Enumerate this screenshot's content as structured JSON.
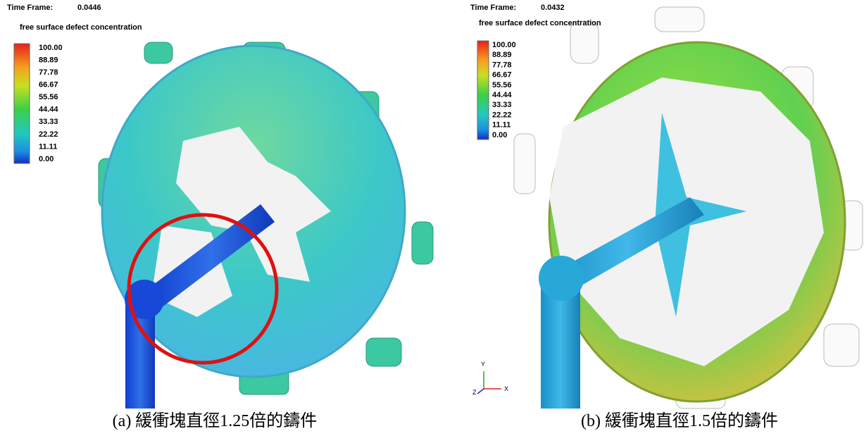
{
  "panels": [
    {
      "time_frame_label": "Time Frame:",
      "time_frame": "0.0446",
      "legend_title": "free surface defect concentration",
      "legend_ticks": [
        "100.00",
        "88.89",
        "77.78",
        "66.67",
        "55.56",
        "44.44",
        "33.33",
        "22.22",
        "11.11",
        "0.00"
      ],
      "caption": "(a)  緩衝塊直徑1.25倍的鑄件"
    },
    {
      "time_frame_label": "Time Frame:",
      "time_frame": "0.0432",
      "legend_title": "free surface defect concentration",
      "legend_ticks": [
        "100.00",
        "88.89",
        "77.78",
        "66.67",
        "55.56",
        "44.44",
        "33.33",
        "22.22",
        "11.11",
        "0.00"
      ],
      "axes": [
        "Y",
        "Z",
        "X"
      ],
      "caption": "(b)  緩衝塊直徑1.5倍的鑄件"
    }
  ]
}
